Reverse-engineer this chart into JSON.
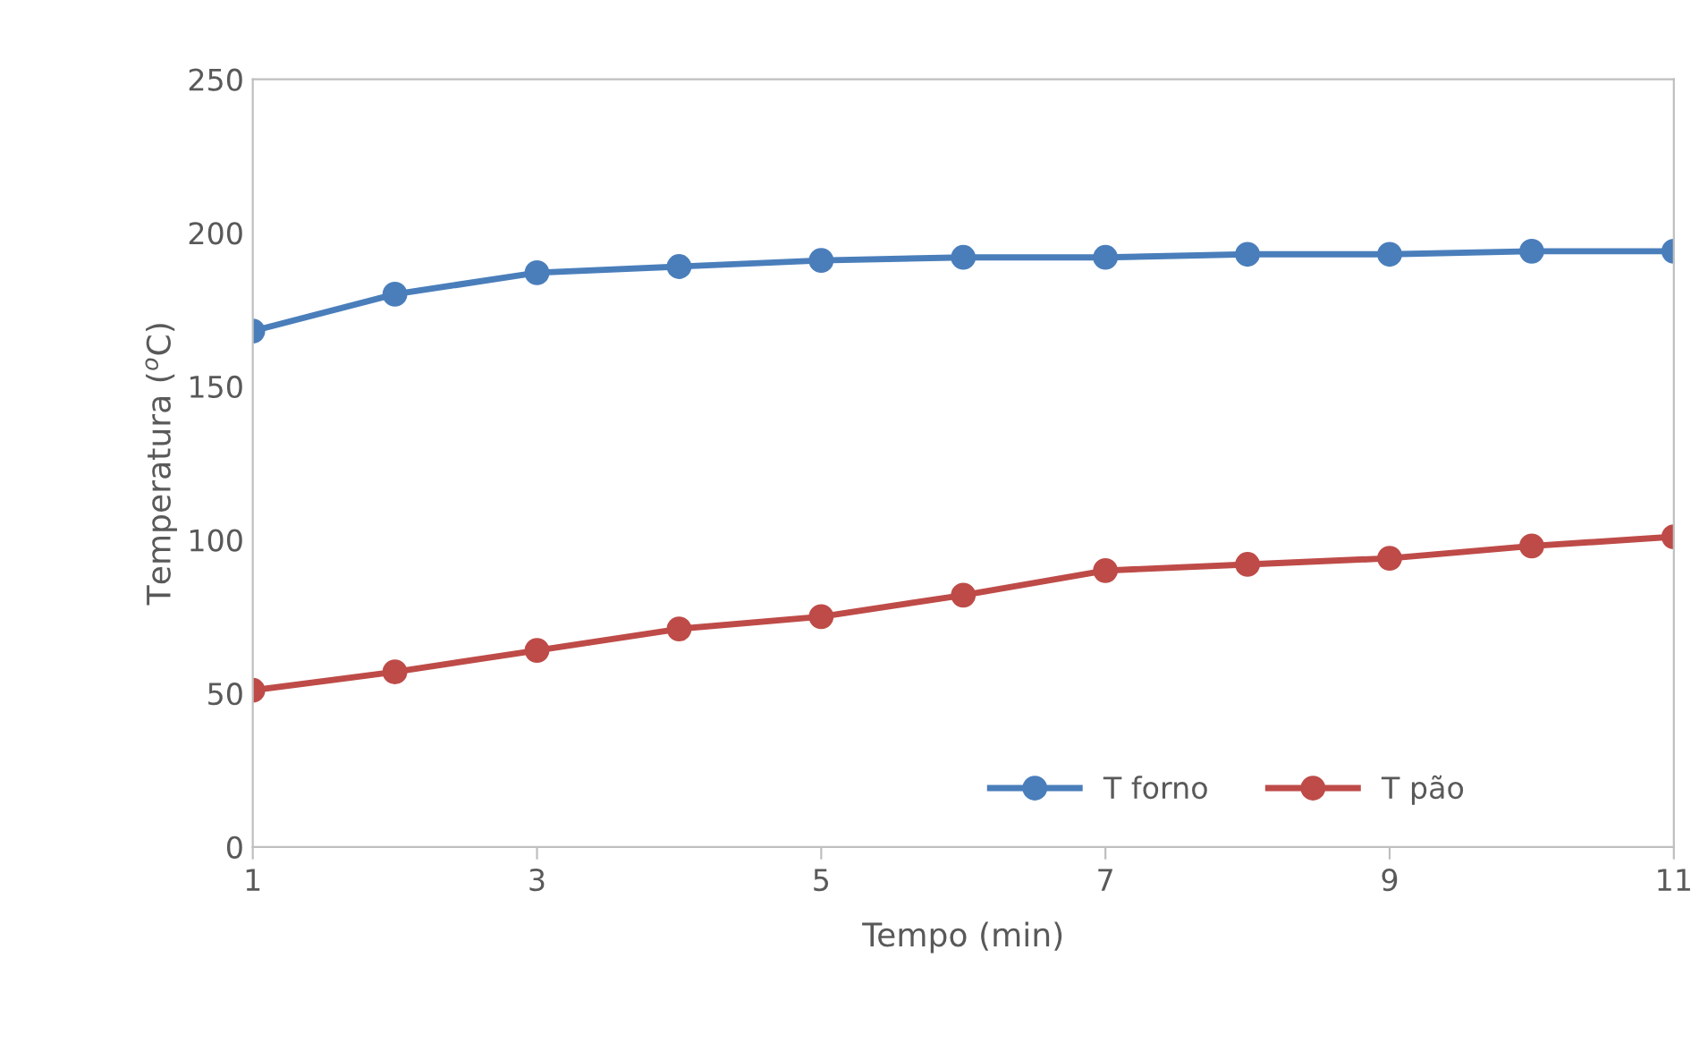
{
  "chart_data": {
    "type": "line",
    "xlabel": "Tempo (min)",
    "ylabel": "Temperatura ($^{o}$C)",
    "x": [
      1,
      2,
      3,
      4,
      5,
      6,
      7,
      8,
      9,
      10,
      11
    ],
    "series": [
      {
        "name": "T forno",
        "color": "#4a7ebb",
        "values": [
          168,
          180,
          187,
          189,
          191,
          192,
          192,
          193,
          193,
          194,
          194
        ]
      },
      {
        "name": "T pão",
        "color": "#be4b48",
        "values": [
          51,
          57,
          64,
          71,
          75,
          82,
          90,
          92,
          94,
          98,
          101
        ]
      }
    ],
    "xlim": [
      1,
      11
    ],
    "xticks": [
      1,
      3,
      5,
      7,
      9,
      11
    ],
    "ylim": [
      0,
      250
    ],
    "yticks": [
      0,
      50,
      100,
      150,
      200,
      250
    ],
    "grid": false,
    "legend": "bottom",
    "marker": "circle",
    "line_style": "solid"
  }
}
